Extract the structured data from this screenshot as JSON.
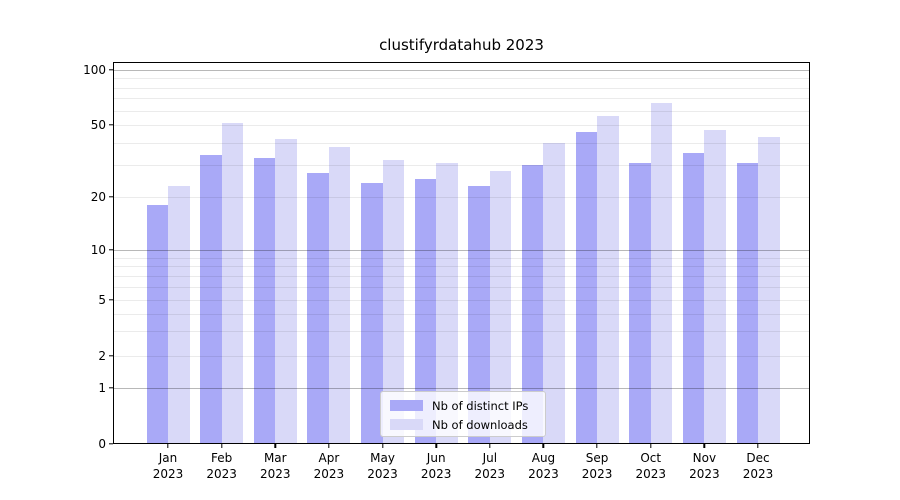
{
  "chart_data": {
    "type": "bar",
    "title": "clustifyrdatahub 2023",
    "categories": [
      "Jan",
      "Feb",
      "Mar",
      "Apr",
      "May",
      "Jun",
      "Jul",
      "Aug",
      "Sep",
      "Oct",
      "Nov",
      "Dec"
    ],
    "category_year": "2023",
    "series": [
      {
        "name": "Nb of distinct IPs",
        "color": "#a9a9f7",
        "values": [
          18,
          34,
          33,
          27,
          24,
          25,
          23,
          30,
          46,
          31,
          35,
          31
        ]
      },
      {
        "name": "Nb of downloads",
        "color": "#d9d9f8",
        "values": [
          23,
          51,
          42,
          38,
          32,
          31,
          28,
          40,
          56,
          66,
          47,
          43
        ]
      }
    ],
    "yscale": "symlog",
    "ylim": [
      0,
      110
    ],
    "y_tick_labels": [
      "0",
      "1",
      "2",
      "5",
      "10",
      "20",
      "50",
      "100"
    ],
    "y_tick_values": [
      0,
      1,
      2,
      5,
      10,
      20,
      50,
      100
    ],
    "y_light_gridlines": [
      2,
      3,
      4,
      5,
      6,
      7,
      8,
      9,
      20,
      30,
      40,
      50,
      60,
      70,
      80,
      90
    ],
    "y_decade_gridlines": [
      1,
      10,
      100
    ],
    "grid": true,
    "legend_position": "lower-center"
  }
}
